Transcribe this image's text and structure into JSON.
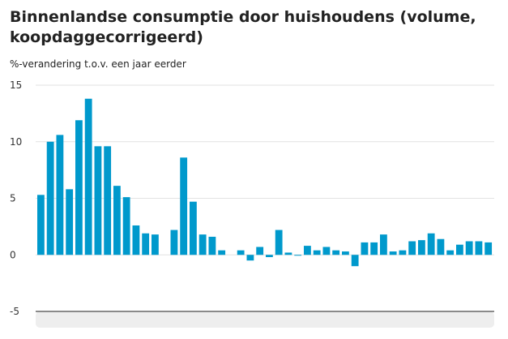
{
  "chart_data": {
    "type": "bar",
    "title": "Binnenlandse consumptie door huishoudens (volume, koopdaggecorrigeerd)",
    "subtitle": "%-verandering t.o.v. een jaar eerder",
    "xlabel": "",
    "ylabel": "%-verandering t.o.v. een jaar eerder",
    "ylim": [
      -5,
      15
    ],
    "yticks": [
      15,
      10,
      5,
      0,
      -5
    ],
    "grid": true,
    "color": "#0099cc",
    "values": [
      5.3,
      10.0,
      10.6,
      5.8,
      11.9,
      13.8,
      9.6,
      9.6,
      6.1,
      5.1,
      2.6,
      1.9,
      1.8,
      0,
      2.2,
      8.6,
      4.7,
      1.8,
      1.6,
      0.4,
      0,
      0.4,
      -0.5,
      0.7,
      -0.2,
      2.2,
      0.2,
      -0.05,
      0.8,
      0.4,
      0.7,
      0.4,
      0.3,
      -1.0,
      1.1,
      1.1,
      1.8,
      0.3,
      0.4,
      1.2,
      1.3,
      1.9,
      1.4,
      0.4,
      0.9,
      1.2,
      1.2,
      1.1
    ]
  }
}
